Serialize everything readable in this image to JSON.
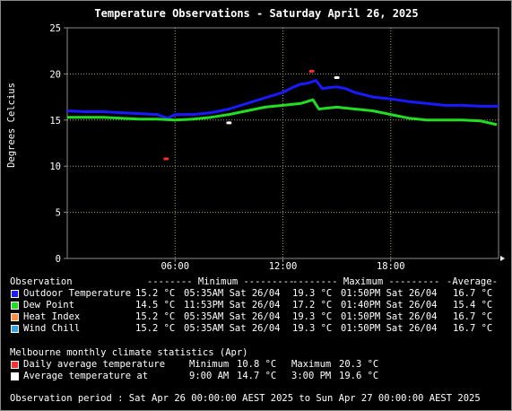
{
  "chart_data": {
    "type": "line",
    "title": "Temperature Observations - Saturday April 26, 2025",
    "ylabel": "Degrees Celcius",
    "ylim": [
      0,
      25
    ],
    "xlim_hours": [
      0,
      24
    ],
    "yticks": [
      0,
      5,
      10,
      15,
      20,
      25
    ],
    "xticks": [
      {
        "h": 6,
        "label": "06:00"
      },
      {
        "h": 12,
        "label": "12:00"
      },
      {
        "h": 18,
        "label": "18:00"
      }
    ],
    "grid": true,
    "series": [
      {
        "name": "Outdoor Temperature",
        "color": "#1a1aff",
        "points": [
          [
            0,
            16.0
          ],
          [
            1,
            15.9
          ],
          [
            2,
            15.9
          ],
          [
            3,
            15.8
          ],
          [
            4,
            15.7
          ],
          [
            5,
            15.6
          ],
          [
            5.58,
            15.2
          ],
          [
            6,
            15.6
          ],
          [
            7,
            15.6
          ],
          [
            8,
            15.8
          ],
          [
            9,
            16.2
          ],
          [
            10,
            16.8
          ],
          [
            11,
            17.4
          ],
          [
            12,
            18.0
          ],
          [
            12.5,
            18.5
          ],
          [
            13,
            18.9
          ],
          [
            13.4,
            19.0
          ],
          [
            13.83,
            19.3
          ],
          [
            14.2,
            18.4
          ],
          [
            14.5,
            18.5
          ],
          [
            15,
            18.6
          ],
          [
            15.5,
            18.4
          ],
          [
            16,
            18.0
          ],
          [
            17,
            17.5
          ],
          [
            18,
            17.3
          ],
          [
            19,
            17.0
          ],
          [
            20,
            16.8
          ],
          [
            21,
            16.6
          ],
          [
            22,
            16.6
          ],
          [
            23,
            16.5
          ],
          [
            24,
            16.5
          ]
        ]
      },
      {
        "name": "Dew Point",
        "color": "#22dd22",
        "points": [
          [
            0,
            15.3
          ],
          [
            1,
            15.3
          ],
          [
            2,
            15.3
          ],
          [
            3,
            15.2
          ],
          [
            4,
            15.1
          ],
          [
            5,
            15.1
          ],
          [
            6,
            15.0
          ],
          [
            7,
            15.1
          ],
          [
            8,
            15.3
          ],
          [
            9,
            15.6
          ],
          [
            10,
            16.0
          ],
          [
            11,
            16.4
          ],
          [
            12,
            16.6
          ],
          [
            13,
            16.8
          ],
          [
            13.67,
            17.2
          ],
          [
            14,
            16.2
          ],
          [
            15,
            16.4
          ],
          [
            16,
            16.2
          ],
          [
            17,
            16.0
          ],
          [
            18,
            15.6
          ],
          [
            19,
            15.2
          ],
          [
            20,
            15.0
          ],
          [
            21,
            15.0
          ],
          [
            22,
            15.0
          ],
          [
            23,
            14.9
          ],
          [
            23.9,
            14.5
          ]
        ]
      }
    ],
    "markers": [
      {
        "name": "Daily average temperature",
        "color": "#ff3030",
        "points": [
          [
            5.5,
            10.8
          ],
          [
            13.6,
            20.3
          ]
        ]
      },
      {
        "name": "Average temperature",
        "color": "#ffffff",
        "points": [
          [
            9.0,
            14.7
          ],
          [
            15.0,
            19.6
          ]
        ]
      }
    ]
  },
  "legend": {
    "header": {
      "col_observation": "Observation",
      "col_minimum": "-------- Minimum ---------",
      "col_maximum": "-------- Maximum ---------",
      "col_average": "-Average-"
    },
    "rows": [
      {
        "label": "Outdoor Temperature",
        "color": "#1a1aff",
        "min_val": "15.2 °C",
        "min_time": "05:35AM Sat 26/04",
        "max_val": "19.3 °C",
        "max_time": "01:50PM Sat 26/04",
        "avg": "16.7 °C"
      },
      {
        "label": "Dew Point",
        "color": "#22dd22",
        "min_val": "14.5 °C",
        "min_time": "11:53PM Sat 26/04",
        "max_val": "17.2 °C",
        "max_time": "01:40PM Sat 26/04",
        "avg": "15.4 °C"
      },
      {
        "label": "Heat Index",
        "color": "#ff8c3a",
        "min_val": "15.2 °C",
        "min_time": "05:35AM Sat 26/04",
        "max_val": "19.3 °C",
        "max_time": "01:50PM Sat 26/04",
        "avg": "16.7 °C"
      },
      {
        "label": "Wind Chill",
        "color": "#3aa0e8",
        "min_val": "15.2 °C",
        "min_time": "05:35AM Sat 26/04",
        "max_val": "19.3 °C",
        "max_time": "01:50PM Sat 26/04",
        "avg": "16.7 °C"
      }
    ]
  },
  "climate": {
    "title": "Melbourne monthly climate statistics (Apr)",
    "daily": {
      "label": "Daily average temperature",
      "color": "#ff3030",
      "min_label": "Minimum",
      "min_val": "10.8 °C",
      "max_label": "Maximum",
      "max_val": "20.3 °C"
    },
    "avg": {
      "label": "Average temperature at",
      "color": "#ffffff",
      "t1": "9:00 AM",
      "v1": "14.7 °C",
      "t2": "3:00 PM",
      "v2": "19.6 °C"
    }
  },
  "period": "Observation period : Sat Apr 26 00:00:00 AEST 2025 to Sun Apr 27 00:00:00 AEST 2025"
}
